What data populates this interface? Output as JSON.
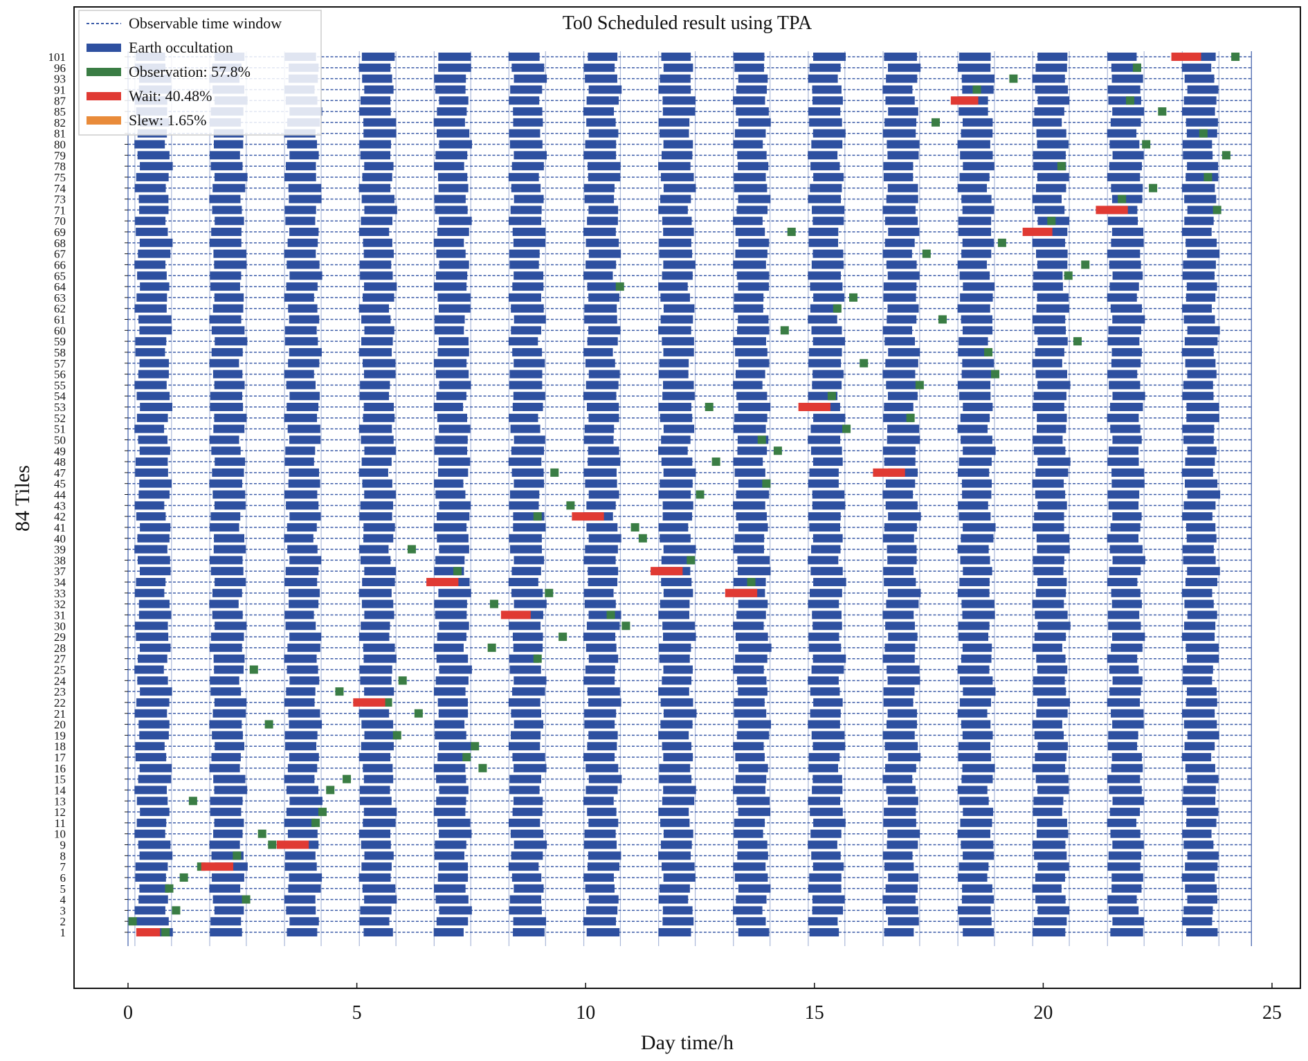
{
  "chart_data": {
    "type": "gantt",
    "title": "To0 Scheduled result using TPA",
    "xlabel": "Day time/h",
    "ylabel": "84 Tiles",
    "xlim": [
      0,
      25
    ],
    "xticks": [
      "0",
      "5",
      "10",
      "15",
      "20",
      "25"
    ],
    "ytick_labels": [
      "1",
      "2",
      "3",
      "4",
      "5",
      "6",
      "7",
      "8",
      "9",
      "10",
      "11",
      "12",
      "13",
      "14",
      "15",
      "16",
      "17",
      "18",
      "19",
      "20",
      "21",
      "22",
      "23",
      "24",
      "25",
      "27",
      "28",
      "29",
      "30",
      "31",
      "32",
      "33",
      "34",
      "37",
      "38",
      "39",
      "40",
      "41",
      "42",
      "43",
      "44",
      "45",
      "47",
      "48",
      "49",
      "50",
      "51",
      "52",
      "53",
      "54",
      "55",
      "56",
      "57",
      "58",
      "59",
      "60",
      "61",
      "62",
      "63",
      "64",
      "65",
      "66",
      "67",
      "68",
      "69",
      "70",
      "71",
      "73",
      "74",
      "75",
      "78",
      "79",
      "80",
      "81",
      "82",
      "85",
      "87",
      "91",
      "93",
      "96",
      "101"
    ],
    "orbit_period_h": 1.635,
    "occultation_start_h": 0.2,
    "occultation_duration_h": 0.68,
    "legend": {
      "position": "top-left",
      "entries": [
        {
          "label": "Observable time window",
          "color": "#3b5ba8",
          "style": "dashed"
        },
        {
          "label": "Earth occultation",
          "color": "#2e50a0",
          "style": "bar"
        },
        {
          "label": "Observation: 57.8%",
          "color": "#3a7d44",
          "style": "bar"
        },
        {
          "label": "Wait: 40.48%",
          "color": "#e03a33",
          "style": "bar"
        },
        {
          "label": "Slew: 1.65%",
          "color": "#e98b3a",
          "style": "bar"
        }
      ]
    },
    "observations": [
      {
        "tile": "1",
        "x": 0.82
      },
      {
        "tile": "2",
        "x": 0.1
      },
      {
        "tile": "3",
        "x": 1.05
      },
      {
        "tile": "4",
        "x": 2.58
      },
      {
        "tile": "5",
        "x": 0.9
      },
      {
        "tile": "6",
        "x": 1.22
      },
      {
        "tile": "7",
        "x": 1.6
      },
      {
        "tile": "8",
        "x": 2.38
      },
      {
        "tile": "9",
        "x": 3.15
      },
      {
        "tile": "10",
        "x": 2.93
      },
      {
        "tile": "11",
        "x": 4.1
      },
      {
        "tile": "12",
        "x": 4.25
      },
      {
        "tile": "13",
        "x": 1.42
      },
      {
        "tile": "14",
        "x": 4.42
      },
      {
        "tile": "15",
        "x": 4.78
      },
      {
        "tile": "16",
        "x": 7.75
      },
      {
        "tile": "17",
        "x": 7.4
      },
      {
        "tile": "18",
        "x": 7.58
      },
      {
        "tile": "19",
        "x": 5.88
      },
      {
        "tile": "20",
        "x": 3.08
      },
      {
        "tile": "21",
        "x": 6.35
      },
      {
        "tile": "22",
        "x": 5.68
      },
      {
        "tile": "23",
        "x": 4.62
      },
      {
        "tile": "24",
        "x": 6.0
      },
      {
        "tile": "25",
        "x": 2.75
      },
      {
        "tile": "27",
        "x": 8.95
      },
      {
        "tile": "28",
        "x": 7.95
      },
      {
        "tile": "29",
        "x": 9.5
      },
      {
        "tile": "30",
        "x": 10.88
      },
      {
        "tile": "31",
        "x": 10.55
      },
      {
        "tile": "32",
        "x": 8.0
      },
      {
        "tile": "33",
        "x": 9.2
      },
      {
        "tile": "34",
        "x": 13.62
      },
      {
        "tile": "37",
        "x": 7.2
      },
      {
        "tile": "38",
        "x": 12.3
      },
      {
        "tile": "39",
        "x": 6.2
      },
      {
        "tile": "40",
        "x": 11.25
      },
      {
        "tile": "41",
        "x": 11.08
      },
      {
        "tile": "42",
        "x": 8.95
      },
      {
        "tile": "43",
        "x": 9.67
      },
      {
        "tile": "44",
        "x": 12.5
      },
      {
        "tile": "45",
        "x": 13.95
      },
      {
        "tile": "47",
        "x": 9.32
      },
      {
        "tile": "48",
        "x": 12.85
      },
      {
        "tile": "49",
        "x": 14.2
      },
      {
        "tile": "50",
        "x": 13.85
      },
      {
        "tile": "51",
        "x": 15.7
      },
      {
        "tile": "52",
        "x": 17.1
      },
      {
        "tile": "53",
        "x": 12.7
      },
      {
        "tile": "54",
        "x": 15.38
      },
      {
        "tile": "55",
        "x": 17.3
      },
      {
        "tile": "56",
        "x": 18.95
      },
      {
        "tile": "57",
        "x": 16.08
      },
      {
        "tile": "58",
        "x": 18.8
      },
      {
        "tile": "59",
        "x": 20.75
      },
      {
        "tile": "60",
        "x": 14.35
      },
      {
        "tile": "61",
        "x": 17.8
      },
      {
        "tile": "62",
        "x": 15.5
      },
      {
        "tile": "63",
        "x": 15.85
      },
      {
        "tile": "64",
        "x": 10.75
      },
      {
        "tile": "65",
        "x": 20.55
      },
      {
        "tile": "66",
        "x": 20.92
      },
      {
        "tile": "67",
        "x": 17.45
      },
      {
        "tile": "68",
        "x": 19.1
      },
      {
        "tile": "69",
        "x": 14.5
      },
      {
        "tile": "70",
        "x": 20.18
      },
      {
        "tile": "71",
        "x": 23.8
      },
      {
        "tile": "73",
        "x": 21.72
      },
      {
        "tile": "74",
        "x": 22.4
      },
      {
        "tile": "75",
        "x": 23.6
      },
      {
        "tile": "78",
        "x": 20.4
      },
      {
        "tile": "79",
        "x": 24.0
      },
      {
        "tile": "80",
        "x": 22.25
      },
      {
        "tile": "81",
        "x": 23.5
      },
      {
        "tile": "82",
        "x": 17.65
      },
      {
        "tile": "85",
        "x": 22.6
      },
      {
        "tile": "87",
        "x": 21.9
      },
      {
        "tile": "91",
        "x": 18.55
      },
      {
        "tile": "93",
        "x": 19.35
      },
      {
        "tile": "96",
        "x": 22.05
      },
      {
        "tile": "101",
        "x": 24.2
      }
    ],
    "waits": [
      {
        "tile": "1",
        "x0": 0.18,
        "x1": 0.7
      },
      {
        "tile": "7",
        "x0": 1.6,
        "x1": 2.3
      },
      {
        "tile": "9",
        "x0": 3.25,
        "x1": 3.95
      },
      {
        "tile": "22",
        "x0": 4.92,
        "x1": 5.62
      },
      {
        "tile": "31",
        "x0": 8.15,
        "x1": 8.8
      },
      {
        "tile": "33",
        "x0": 13.05,
        "x1": 13.75
      },
      {
        "tile": "34",
        "x0": 6.52,
        "x1": 7.22
      },
      {
        "tile": "37",
        "x0": 11.42,
        "x1": 12.12
      },
      {
        "tile": "42",
        "x0": 9.7,
        "x1": 10.4
      },
      {
        "tile": "47",
        "x0": 16.28,
        "x1": 16.98
      },
      {
        "tile": "53",
        "x0": 14.65,
        "x1": 15.35
      },
      {
        "tile": "69",
        "x0": 19.55,
        "x1": 20.2
      },
      {
        "tile": "71",
        "x0": 21.15,
        "x1": 21.85
      },
      {
        "tile": "87",
        "x0": 17.98,
        "x1": 18.58
      },
      {
        "tile": "101",
        "x0": 22.8,
        "x1": 23.45
      }
    ]
  }
}
